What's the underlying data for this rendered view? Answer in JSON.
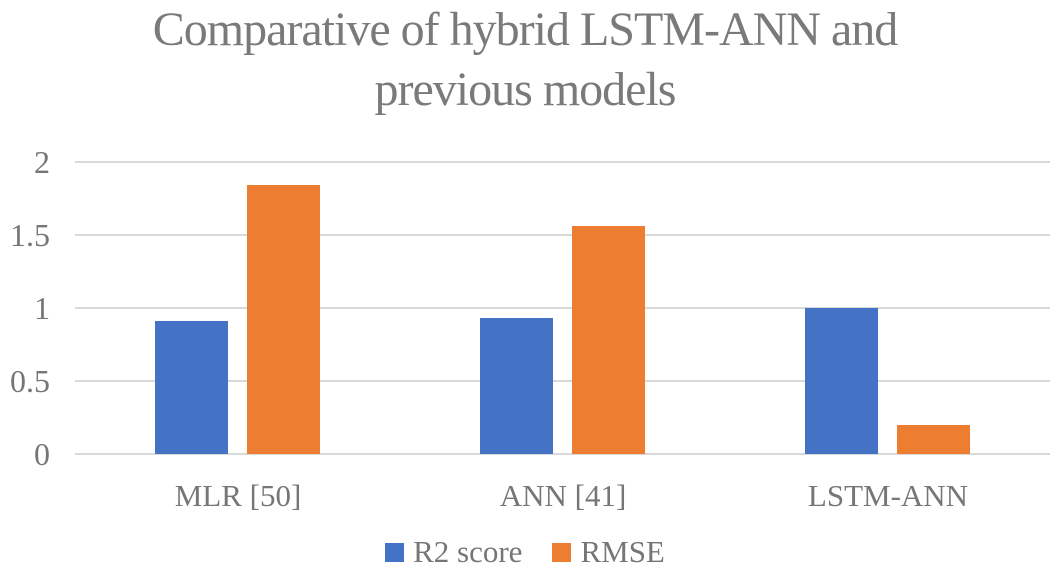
{
  "chart_data": {
    "type": "bar",
    "title": "Comparative of hybrid LSTM-ANN and previous models",
    "categories": [
      "MLR [50]",
      "ANN [41]",
      "LSTM-ANN"
    ],
    "series": [
      {
        "name": "R2 score",
        "color": "#4472C4",
        "values": [
          0.91,
          0.93,
          1.0
        ]
      },
      {
        "name": "RMSE",
        "color": "#ED7D31",
        "values": [
          1.84,
          1.56,
          0.2
        ]
      }
    ],
    "xlabel": "",
    "ylabel": "",
    "ylim": [
      0,
      2
    ],
    "yticks": [
      0,
      0.5,
      1,
      1.5,
      2
    ],
    "grid": true,
    "legend_position": "bottom"
  },
  "colors": {
    "title_text": "#7a7a7a",
    "axis_text": "#767676",
    "gridline": "#d9d9d9",
    "background": "#ffffff"
  }
}
